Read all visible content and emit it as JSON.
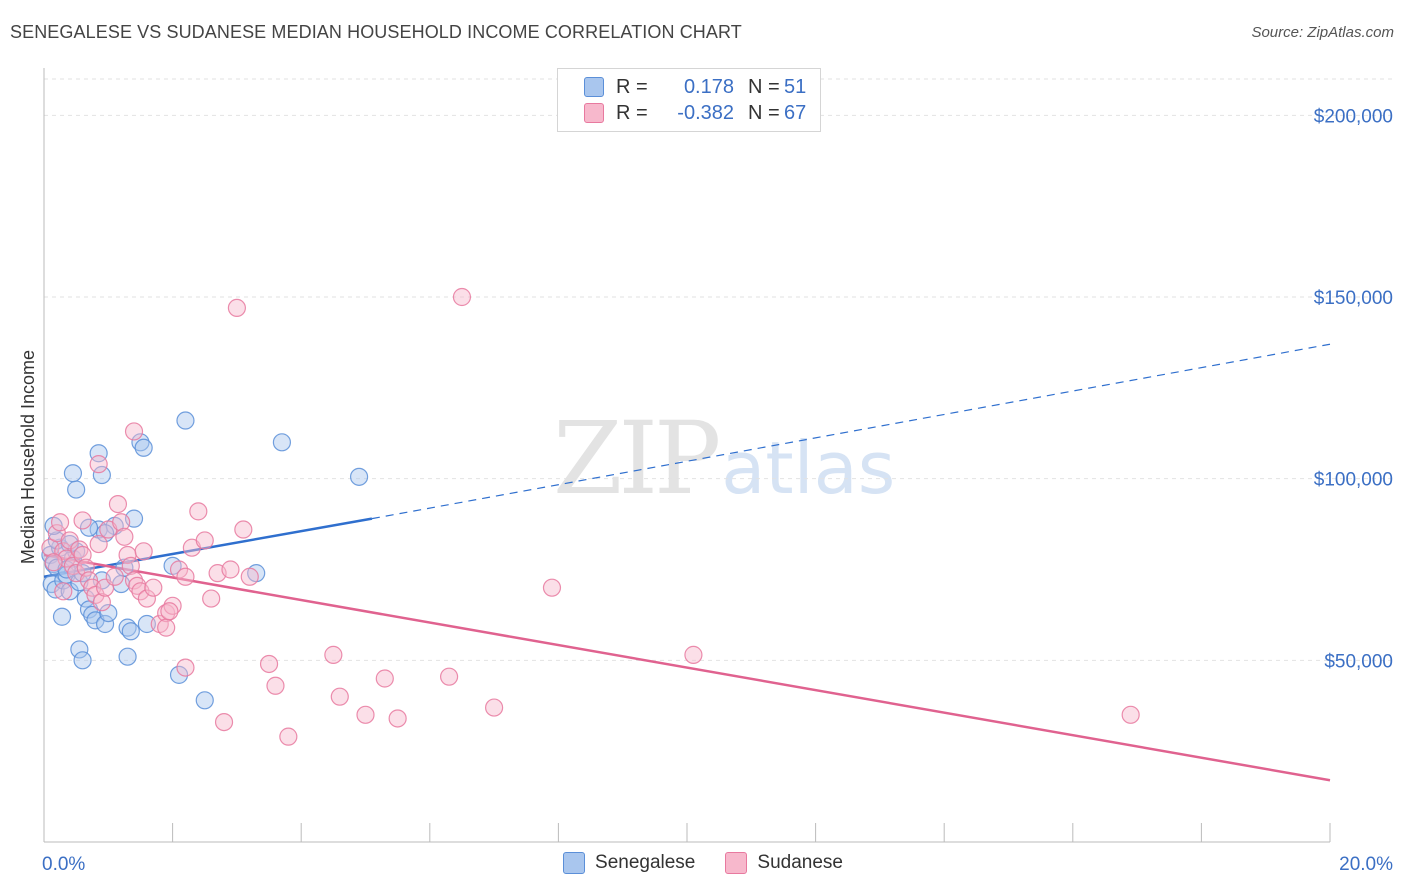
{
  "header": {
    "title": "SENEGALESE VS SUDANESE MEDIAN HOUSEHOLD INCOME CORRELATION CHART",
    "source": "Source: ZipAtlas.com"
  },
  "watermark": {
    "zip": "ZIP",
    "atlas": "atlas"
  },
  "legend": {
    "rows": [
      {
        "r_label": "R =",
        "r_value": "0.178",
        "n_label": "N =",
        "n_value": "51",
        "color": "#a9c6ee"
      },
      {
        "r_label": "R =",
        "r_value": "-0.382",
        "n_label": "N =",
        "n_value": "67",
        "color": "#f7b8cc"
      }
    ]
  },
  "bottom_legend": {
    "series1": "Senegalese",
    "series2": "Sudanese"
  },
  "colors": {
    "blue": "#5b8fd8",
    "blue_fill": "#a9c6ee",
    "pink": "#e8799f",
    "pink_fill": "#f7b8cc",
    "blue_line": "#2f6fce",
    "pink_line": "#e0628f"
  },
  "chart_data": {
    "type": "scatter",
    "ylabel": "Median Household Income",
    "xlim": [
      0,
      20
    ],
    "ylim": [
      0,
      210000
    ],
    "x_tick_labels": [
      "0.0%",
      "20.0%"
    ],
    "y_ticks": [
      50000,
      100000,
      150000,
      200000
    ],
    "y_tick_labels": [
      "$50,000",
      "$100,000",
      "$150,000",
      "$200,000"
    ],
    "series": [
      {
        "name": "Senegalese",
        "trend": {
          "x0": 0,
          "y0": 73000,
          "x1": 5.1,
          "y1": 89000,
          "x_dash_end": 20,
          "y_dash_end": 137000
        },
        "points": [
          [
            0.1,
            79000
          ],
          [
            0.15,
            76500
          ],
          [
            0.2,
            75500
          ],
          [
            0.12,
            71000
          ],
          [
            0.18,
            69500
          ],
          [
            0.25,
            81000
          ],
          [
            0.3,
            72000
          ],
          [
            0.35,
            73500
          ],
          [
            0.4,
            69000
          ],
          [
            0.45,
            78000
          ],
          [
            0.5,
            80000
          ],
          [
            0.55,
            71500
          ],
          [
            0.6,
            74000
          ],
          [
            0.65,
            67000
          ],
          [
            0.7,
            64000
          ],
          [
            0.75,
            62500
          ],
          [
            0.8,
            61000
          ],
          [
            0.85,
            86000
          ],
          [
            0.9,
            72000
          ],
          [
            0.95,
            60000
          ],
          [
            1.0,
            63000
          ],
          [
            1.1,
            87000
          ],
          [
            1.2,
            71000
          ],
          [
            1.3,
            59000
          ],
          [
            0.5,
            97000
          ],
          [
            0.45,
            101500
          ],
          [
            0.85,
            107000
          ],
          [
            0.9,
            101000
          ],
          [
            1.5,
            110000
          ],
          [
            1.55,
            108500
          ],
          [
            2.2,
            116000
          ],
          [
            3.7,
            110000
          ],
          [
            4.9,
            100500
          ],
          [
            0.28,
            62000
          ],
          [
            0.55,
            53000
          ],
          [
            0.6,
            50000
          ],
          [
            1.35,
            58000
          ],
          [
            1.3,
            51000
          ],
          [
            1.6,
            60000
          ],
          [
            2.1,
            46000
          ],
          [
            2.5,
            39000
          ],
          [
            3.3,
            74000
          ],
          [
            0.2,
            83000
          ],
          [
            0.35,
            75000
          ],
          [
            1.25,
            75500
          ],
          [
            1.4,
            89000
          ],
          [
            2.0,
            76000
          ],
          [
            0.15,
            87000
          ],
          [
            0.4,
            82000
          ],
          [
            0.7,
            86500
          ],
          [
            0.95,
            85000
          ]
        ]
      },
      {
        "name": "Sudanese",
        "trend": {
          "x0": 0,
          "y0": 79000,
          "x1": 20,
          "y1": 17000
        },
        "points": [
          [
            0.1,
            81000
          ],
          [
            0.2,
            85000
          ],
          [
            0.25,
            88000
          ],
          [
            0.3,
            80000
          ],
          [
            0.35,
            78000
          ],
          [
            0.4,
            83000
          ],
          [
            0.45,
            76000
          ],
          [
            0.5,
            74000
          ],
          [
            0.55,
            80500
          ],
          [
            0.6,
            79000
          ],
          [
            0.65,
            75500
          ],
          [
            0.7,
            72000
          ],
          [
            0.75,
            70000
          ],
          [
            0.8,
            68000
          ],
          [
            0.85,
            82000
          ],
          [
            0.9,
            66000
          ],
          [
            0.95,
            70000
          ],
          [
            1.0,
            86000
          ],
          [
            1.1,
            73000
          ],
          [
            1.15,
            93000
          ],
          [
            1.2,
            88000
          ],
          [
            1.25,
            84000
          ],
          [
            1.3,
            79000
          ],
          [
            1.35,
            76000
          ],
          [
            1.4,
            72000
          ],
          [
            1.45,
            70500
          ],
          [
            1.5,
            69000
          ],
          [
            1.55,
            80000
          ],
          [
            1.6,
            67000
          ],
          [
            1.7,
            70000
          ],
          [
            1.8,
            60000
          ],
          [
            1.9,
            63000
          ],
          [
            2.0,
            65000
          ],
          [
            2.1,
            75000
          ],
          [
            2.2,
            73000
          ],
          [
            2.3,
            81000
          ],
          [
            2.4,
            91000
          ],
          [
            2.5,
            83000
          ],
          [
            2.6,
            67000
          ],
          [
            2.7,
            74000
          ],
          [
            2.9,
            75000
          ],
          [
            3.1,
            86000
          ],
          [
            3.2,
            73000
          ],
          [
            1.4,
            113000
          ],
          [
            0.85,
            104000
          ],
          [
            3.0,
            147000
          ],
          [
            6.5,
            150000
          ],
          [
            3.5,
            49000
          ],
          [
            3.6,
            43000
          ],
          [
            4.5,
            51500
          ],
          [
            4.6,
            40000
          ],
          [
            5.0,
            35000
          ],
          [
            5.3,
            45000
          ],
          [
            5.5,
            34000
          ],
          [
            6.3,
            45500
          ],
          [
            7.0,
            37000
          ],
          [
            7.9,
            70000
          ],
          [
            10.1,
            51500
          ],
          [
            16.9,
            35000
          ],
          [
            3.8,
            29000
          ],
          [
            2.8,
            33000
          ],
          [
            2.2,
            48000
          ],
          [
            1.9,
            59000
          ],
          [
            1.95,
            63500
          ],
          [
            0.6,
            88500
          ],
          [
            0.3,
            69000
          ],
          [
            0.15,
            77000
          ]
        ]
      }
    ]
  }
}
